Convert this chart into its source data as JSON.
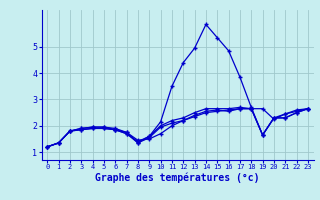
{
  "xlabel": "Graphe des températures (°c)",
  "background_color": "#c8eef0",
  "grid_color": "#a0c8cc",
  "line_color": "#0000cc",
  "xlim": [
    -0.5,
    23.5
  ],
  "ylim": [
    0.7,
    6.4
  ],
  "yticks": [
    1,
    2,
    3,
    4,
    5
  ],
  "xticks": [
    0,
    1,
    2,
    3,
    4,
    5,
    6,
    7,
    8,
    9,
    10,
    11,
    12,
    13,
    14,
    15,
    16,
    17,
    18,
    19,
    20,
    21,
    22,
    23
  ],
  "hours": [
    0,
    1,
    2,
    3,
    4,
    5,
    6,
    7,
    8,
    9,
    10,
    11,
    12,
    13,
    14,
    15,
    16,
    17,
    18,
    19,
    20,
    21,
    22,
    23
  ],
  "line1": [
    1.2,
    1.35,
    1.8,
    1.85,
    1.9,
    1.9,
    1.85,
    1.75,
    1.45,
    1.5,
    1.7,
    2.0,
    2.2,
    2.35,
    2.5,
    2.55,
    2.6,
    2.65,
    2.65,
    2.65,
    2.25,
    2.45,
    2.55,
    2.65
  ],
  "line2": [
    1.2,
    1.35,
    1.8,
    1.9,
    1.95,
    1.95,
    1.9,
    1.75,
    1.35,
    1.6,
    2.15,
    3.5,
    4.4,
    4.95,
    5.85,
    5.35,
    4.85,
    3.85,
    2.7,
    1.65,
    2.3,
    2.3,
    2.5,
    2.65
  ],
  "line3": [
    1.2,
    1.35,
    1.8,
    1.85,
    1.9,
    1.9,
    1.85,
    1.7,
    1.4,
    1.6,
    2.0,
    2.2,
    2.3,
    2.5,
    2.65,
    2.65,
    2.65,
    2.7,
    2.65,
    1.65,
    2.3,
    2.3,
    2.5,
    2.65
  ],
  "line4": [
    1.2,
    1.35,
    1.8,
    1.9,
    1.95,
    1.95,
    1.85,
    1.7,
    1.35,
    1.55,
    1.95,
    2.1,
    2.2,
    2.4,
    2.55,
    2.6,
    2.55,
    2.65,
    2.65,
    1.65,
    2.3,
    2.45,
    2.6,
    2.65
  ]
}
